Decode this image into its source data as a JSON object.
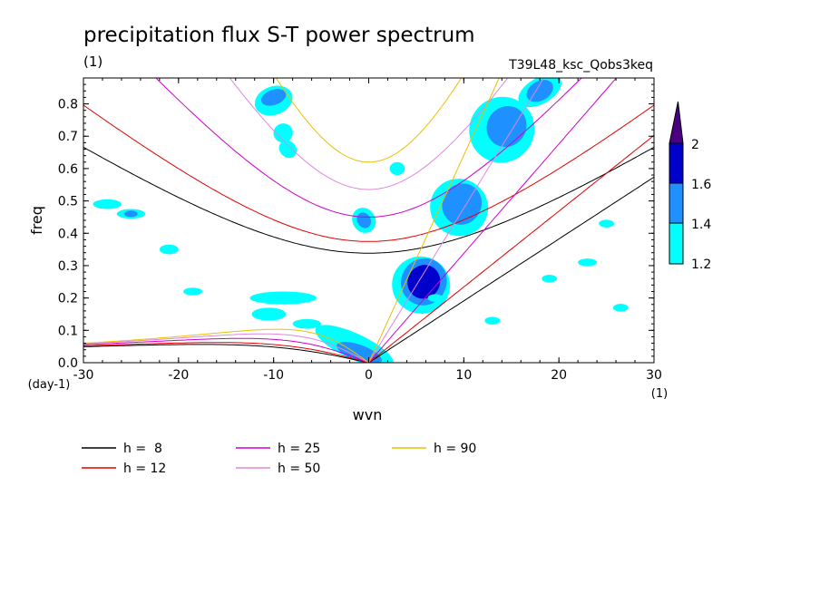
{
  "chart_data": {
    "type": "heatmap",
    "title": "precipitation flux S-T power spectrum",
    "title_unit": "(1)",
    "subtitle_right": "T39L48_ksc_Qobs3keq",
    "xlabel": "wvn",
    "x_unit": "(1)",
    "ylabel": "freq",
    "y_unit": "(day-1)",
    "xlim": [
      -30,
      30
    ],
    "ylim": [
      0,
      0.88
    ],
    "x_ticks": [
      -30,
      -20,
      -10,
      0,
      10,
      20,
      30
    ],
    "y_ticks": [
      0.0,
      0.1,
      0.2,
      0.3,
      0.4,
      0.5,
      0.6,
      0.7,
      0.8
    ],
    "x_tick_labels": [
      "-30",
      "-20",
      "-10",
      "0",
      "10",
      "20",
      "30"
    ],
    "y_tick_labels": [
      "0.0",
      "0.1",
      "0.2",
      "0.3",
      "0.4",
      "0.5",
      "0.6",
      "0.7",
      "0.8"
    ],
    "colorbar": {
      "levels": [
        "1.2",
        "1.4",
        "1.6",
        "2"
      ],
      "colors": [
        "#00ffff",
        "#1e90ff",
        "#0000cd",
        "#4b0082"
      ]
    },
    "contour_regions": [
      {
        "level": 1,
        "cx": 5.5,
        "cy": 0.24,
        "rx": 3.0,
        "ry": 0.09,
        "rot": -62
      },
      {
        "level": 2,
        "cx": 5.8,
        "cy": 0.25,
        "rx": 2.5,
        "ry": 0.07,
        "rot": -62
      },
      {
        "level": 3,
        "cx": 5.8,
        "cy": 0.25,
        "rx": 1.8,
        "ry": 0.05,
        "rot": -62
      },
      {
        "level": 1,
        "cx": 9.5,
        "cy": 0.48,
        "rx": 3.0,
        "ry": 0.09,
        "rot": -62
      },
      {
        "level": 2,
        "cx": 9.8,
        "cy": 0.49,
        "rx": 2.2,
        "ry": 0.06,
        "rot": -62
      },
      {
        "level": 1,
        "cx": 14.0,
        "cy": 0.72,
        "rx": 3.5,
        "ry": 0.1,
        "rot": -55
      },
      {
        "level": 2,
        "cx": 14.5,
        "cy": 0.73,
        "rx": 2.2,
        "ry": 0.06,
        "rot": -55
      },
      {
        "level": 1,
        "cx": 18.0,
        "cy": 0.84,
        "rx": 2.5,
        "ry": 0.04,
        "rot": -30
      },
      {
        "level": 2,
        "cx": 18.0,
        "cy": 0.84,
        "rx": 1.5,
        "ry": 0.03,
        "rot": -30
      },
      {
        "level": 1,
        "cx": -1.5,
        "cy": 0.05,
        "rx": 4.5,
        "ry": 0.04,
        "rot": 25
      },
      {
        "level": 2,
        "cx": -1.0,
        "cy": 0.03,
        "rx": 2.5,
        "ry": 0.025,
        "rot": 20
      },
      {
        "level": 1,
        "cx": -10.0,
        "cy": 0.81,
        "rx": 1.5,
        "ry": 0.06,
        "rot": 70
      },
      {
        "level": 2,
        "cx": -10.0,
        "cy": 0.82,
        "rx": 0.8,
        "ry": 0.04,
        "rot": 70
      },
      {
        "level": 1,
        "cx": -9.0,
        "cy": 0.71,
        "rx": 1.0,
        "ry": 0.03,
        "rot": 60
      },
      {
        "level": 1,
        "cx": -8.5,
        "cy": 0.66,
        "rx": 1.0,
        "ry": 0.025,
        "rot": 45
      },
      {
        "level": 1,
        "cx": -0.5,
        "cy": 0.44,
        "rx": 1.2,
        "ry": 0.04,
        "rot": -30
      },
      {
        "level": 2,
        "cx": -0.5,
        "cy": 0.44,
        "rx": 0.7,
        "ry": 0.025,
        "rot": -30
      },
      {
        "level": 1,
        "cx": -9.0,
        "cy": 0.2,
        "rx": 3.5,
        "ry": 0.02,
        "rot": 0
      },
      {
        "level": 1,
        "cx": -10.5,
        "cy": 0.15,
        "rx": 1.8,
        "ry": 0.02,
        "rot": 0
      },
      {
        "level": 1,
        "cx": -6.5,
        "cy": 0.12,
        "rx": 1.5,
        "ry": 0.015,
        "rot": 0
      },
      {
        "level": 1,
        "cx": -25.0,
        "cy": 0.46,
        "rx": 1.5,
        "ry": 0.015,
        "rot": 0
      },
      {
        "level": 2,
        "cx": -25.0,
        "cy": 0.46,
        "rx": 0.7,
        "ry": 0.01,
        "rot": 0
      },
      {
        "level": 1,
        "cx": -21.0,
        "cy": 0.35,
        "rx": 1.0,
        "ry": 0.015,
        "rot": 0
      },
      {
        "level": 1,
        "cx": -27.5,
        "cy": 0.49,
        "rx": 1.5,
        "ry": 0.015,
        "rot": 0
      },
      {
        "level": 1,
        "cx": -18.5,
        "cy": 0.22,
        "rx": 1.0,
        "ry": 0.012,
        "rot": 0
      },
      {
        "level": 1,
        "cx": 3.0,
        "cy": 0.6,
        "rx": 0.8,
        "ry": 0.02,
        "rot": 0
      },
      {
        "level": 1,
        "cx": 13.0,
        "cy": 0.13,
        "rx": 0.8,
        "ry": 0.012,
        "rot": 0
      },
      {
        "level": 1,
        "cx": 23.0,
        "cy": 0.31,
        "rx": 1.0,
        "ry": 0.012,
        "rot": 0
      },
      {
        "level": 1,
        "cx": 26.5,
        "cy": 0.17,
        "rx": 0.8,
        "ry": 0.012,
        "rot": 0
      },
      {
        "level": 1,
        "cx": 19.0,
        "cy": 0.26,
        "rx": 0.8,
        "ry": 0.012,
        "rot": 0
      },
      {
        "level": 1,
        "cx": 7.0,
        "cy": 0.2,
        "rx": 0.8,
        "ry": 0.012,
        "rot": 0
      },
      {
        "level": 1,
        "cx": 25.0,
        "cy": 0.43,
        "rx": 0.8,
        "ry": 0.012,
        "rot": 0
      }
    ],
    "series": [
      {
        "name": "h =  8",
        "h": 8,
        "color": "#000000"
      },
      {
        "name": "h = 12",
        "h": 12,
        "color": "#e00000"
      },
      {
        "name": "h = 25",
        "h": 25,
        "color": "#cc00cc"
      },
      {
        "name": "h = 50",
        "h": 50,
        "color": "#dd88dd"
      },
      {
        "name": "h = 90",
        "h": 90,
        "color": "#e8c000"
      }
    ]
  }
}
